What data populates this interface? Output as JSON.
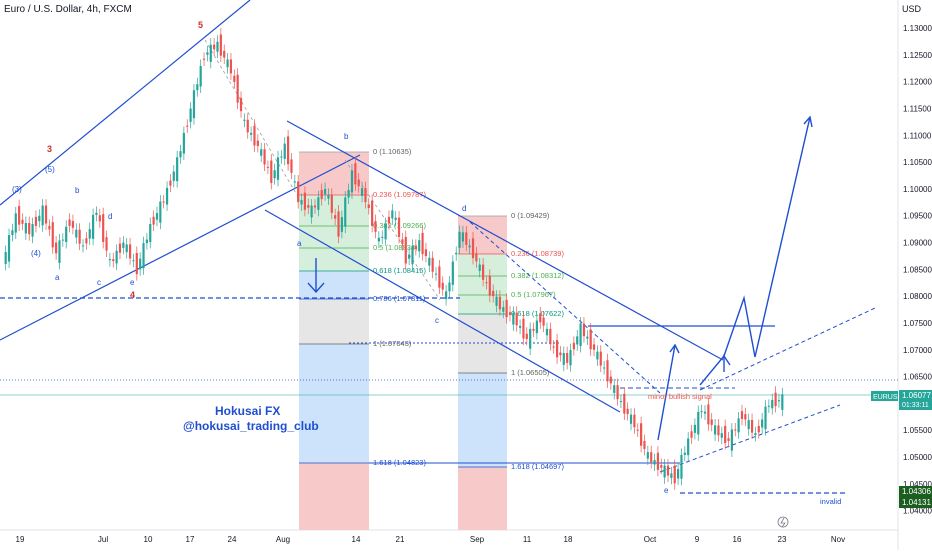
{
  "header": {
    "title": "Euro / U.S. Dollar, 4h, FXCM",
    "currency": "USD"
  },
  "price_axis": {
    "ticks": [
      "1.13000",
      "1.12500",
      "1.12000",
      "1.11500",
      "1.11000",
      "1.10500",
      "1.10000",
      "1.09500",
      "1.09000",
      "1.08500",
      "1.08000",
      "1.07500",
      "1.07000",
      "1.06500",
      "1.06000",
      "1.05500",
      "1.05000",
      "1.04500",
      "1.04000"
    ],
    "symbol_badge": "EURUSD",
    "last_price": "1.06077",
    "countdown": "01:33:11",
    "badge_low1": "1.04306",
    "badge_low2": "1.04131"
  },
  "time_axis": {
    "ticks": [
      "19",
      "Jul",
      "10",
      "17",
      "24",
      "Aug",
      "14",
      "21",
      "Sep",
      "11",
      "18",
      "Oct",
      "9",
      "16",
      "23",
      "Nov"
    ]
  },
  "fib_set_1": {
    "levels": [
      "0 (1.10635)",
      "0.236 (1.09787)",
      "0.382 (1.09266)",
      "0.5 (1.08834)",
      "0.618 (1.08415)",
      "0.786 (1.07811)",
      "1 (1.07043)",
      "1.618 (1.04823)"
    ]
  },
  "fib_set_2": {
    "levels": [
      "0 (1.09429)",
      "0.236 (1.08739)",
      "0.382 (1.08312)",
      "0.5 (1.07967)",
      "0.618 (1.07622)",
      "1 (1.06505)",
      "1.618 (1.04697)"
    ]
  },
  "annotations": {
    "waves": [
      "(3)",
      "(4)",
      "(5)",
      "a",
      "b",
      "c",
      "d",
      "e",
      "3",
      "4",
      "5"
    ],
    "abcde_2": [
      "a",
      "b",
      "c",
      "d",
      "e"
    ],
    "minor_signal": "minor bullish signal",
    "invalid": "invalid"
  },
  "watermark": {
    "line1": "Hokusai FX",
    "line2": "@hokusai_trading_club"
  },
  "colors": {
    "blue": "#1f4fd1",
    "red": "#d32f2f",
    "green": "#26a69a",
    "bear": "#ef5350",
    "fib_red_zone": "#f8c9c9",
    "fib_blue_zone": "#cde3fb",
    "fib_green_zone": "#d6efdc",
    "badge": "#26a69a"
  },
  "chart_data": {
    "type": "candlestick",
    "title": "Euro / U.S. Dollar, 4h, FXCM",
    "symbol": "EURUSD",
    "ylim": [
      1.039,
      1.133
    ],
    "x": [
      "19",
      "Jul",
      "10",
      "17",
      "24",
      "Aug",
      "14",
      "21",
      "Sep",
      "11",
      "18",
      "Oct",
      "9",
      "16",
      "23",
      "Nov"
    ],
    "series": [
      {
        "name": "EURUSD",
        "close_path": [
          1.086,
          1.095,
          1.092,
          1.096,
          1.088,
          1.094,
          1.089,
          1.096,
          1.086,
          1.09,
          1.085,
          1.093,
          1.098,
          1.105,
          1.115,
          1.125,
          1.127,
          1.122,
          1.112,
          1.108,
          1.102,
          1.108,
          1.098,
          1.096,
          1.1,
          1.092,
          1.103,
          1.098,
          1.09,
          1.096,
          1.087,
          1.09,
          1.085,
          1.08,
          1.092,
          1.088,
          1.082,
          1.078,
          1.076,
          1.072,
          1.076,
          1.07,
          1.068,
          1.074,
          1.07,
          1.065,
          1.06,
          1.056,
          1.05,
          1.048,
          1.046,
          1.053,
          1.059,
          1.055,
          1.053,
          1.058,
          1.054,
          1.06,
          1.0608
        ]
      }
    ],
    "last_price": 1.06077
  }
}
